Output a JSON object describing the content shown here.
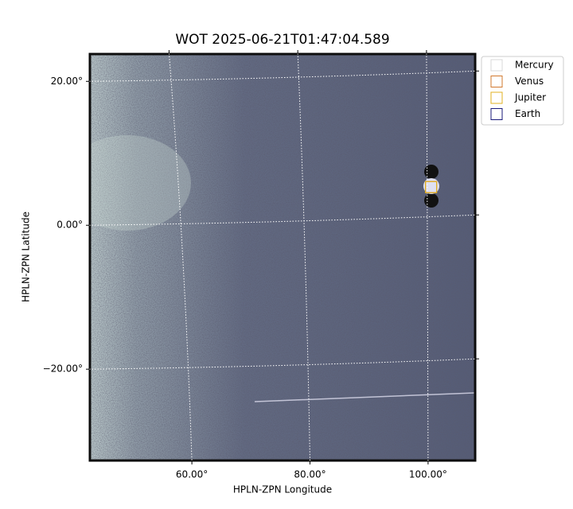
{
  "chart_data": {
    "type": "image",
    "title": "WOT 2025-06-21T01:47:04.589",
    "x_label": "HPLN-ZPN Longitude",
    "y_label": "HPLN-ZPN Latitude",
    "xlim": [
      42.6,
      108.1
    ],
    "ylim": [
      -32.8,
      23.9
    ],
    "xticks": [
      {
        "value": 60,
        "label": "60.00°"
      },
      {
        "value": 80,
        "label": "80.00°"
      },
      {
        "value": 100,
        "label": "100.00°"
      }
    ],
    "yticks": [
      {
        "value": -20,
        "label": "−20.00°"
      },
      {
        "value": 0,
        "label": "0.00°"
      },
      {
        "value": 20,
        "label": "20.00°"
      }
    ],
    "grid": true,
    "legend": "upper right",
    "series": [
      {
        "name": "Mercury",
        "color": "#d9d9d9",
        "x": null,
        "y": null
      },
      {
        "name": "Venus",
        "color": "#d2782e",
        "x": 100.5,
        "y": 5.3
      },
      {
        "name": "Jupiter",
        "color": "#e0b020",
        "x": 100.5,
        "y": 5.3
      },
      {
        "name": "Earth",
        "color": "#1a1a7a",
        "x": null,
        "y": null
      }
    ]
  }
}
